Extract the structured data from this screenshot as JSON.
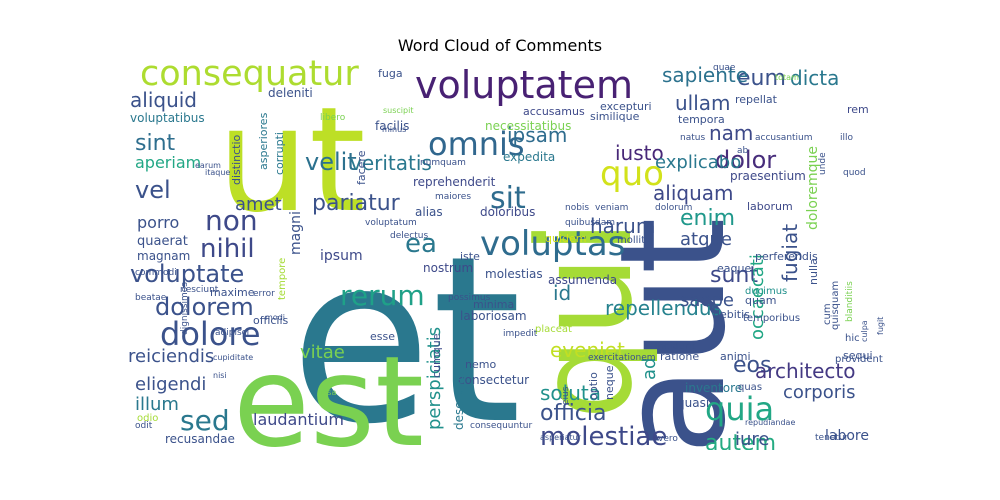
{
  "chart_data": {
    "type": "wordcloud",
    "title": "Word Cloud of Comments",
    "background": "#ffffff",
    "colormap": "viridis",
    "words": [
      {
        "text": "et",
        "color": "#2a788e"
      },
      {
        "text": "aut",
        "color": "#3b528b"
      },
      {
        "text": "ut",
        "color": "#bddf26"
      },
      {
        "text": "est",
        "color": "#7ad151"
      },
      {
        "text": "qui",
        "color": "#a5db36"
      },
      {
        "text": "voluptatem",
        "color": "#482173"
      },
      {
        "text": "consequatur",
        "color": "#addc30"
      },
      {
        "text": "voluptas",
        "color": "#2f6c8e"
      },
      {
        "text": "omnis",
        "color": "#31678e"
      },
      {
        "text": "quia",
        "color": "#22a785"
      },
      {
        "text": "dolore",
        "color": "#3b528b"
      },
      {
        "text": "non",
        "color": "#3e4989"
      },
      {
        "text": "quo",
        "color": "#d2e21b"
      },
      {
        "text": "sit",
        "color": "#2f6c8e"
      },
      {
        "text": "rerum",
        "color": "#1fa188"
      },
      {
        "text": "voluptate",
        "color": "#3b528b"
      },
      {
        "text": "dolorem",
        "color": "#3b528b"
      },
      {
        "text": "sed",
        "color": "#2a788e"
      },
      {
        "text": "molestiae",
        "color": "#3e4989"
      },
      {
        "text": "velit",
        "color": "#2c718e"
      },
      {
        "text": "ea",
        "color": "#2a788e"
      },
      {
        "text": "nihil",
        "color": "#3e4989"
      },
      {
        "text": "sint",
        "color": "#2e6e8e"
      },
      {
        "text": "vel",
        "color": "#3b528b"
      },
      {
        "text": "eum",
        "color": "#3b528b"
      },
      {
        "text": "dolor",
        "color": "#472d7b"
      },
      {
        "text": "autem",
        "color": "#25ab82"
      },
      {
        "text": "enim",
        "color": "#1f988b"
      },
      {
        "text": "sunt",
        "color": "#3e4989"
      },
      {
        "text": "aliquid",
        "color": "#3b528b"
      },
      {
        "text": "veritatis",
        "color": "#2a788e"
      },
      {
        "text": "pariatur",
        "color": "#3b528b"
      },
      {
        "text": "sapiente",
        "color": "#2c728e"
      },
      {
        "text": "dicta",
        "color": "#2a788e"
      },
      {
        "text": "ipsam",
        "color": "#2f6c8e"
      },
      {
        "text": "repellendus",
        "color": "#26828e"
      },
      {
        "text": "eos",
        "color": "#3b528b"
      },
      {
        "text": "architecto",
        "color": "#443983"
      },
      {
        "text": "ullam",
        "color": "#3b528b"
      },
      {
        "text": "nam",
        "color": "#3e4989"
      },
      {
        "text": "iusto",
        "color": "#482878"
      },
      {
        "text": "explicabo",
        "color": "#2a788e"
      },
      {
        "text": "aliquam",
        "color": "#3e4989"
      },
      {
        "text": "harum",
        "color": "#3b528b"
      },
      {
        "text": "atque",
        "color": "#3b528b"
      },
      {
        "text": "fugiat",
        "color": "#3b528b"
      },
      {
        "text": "occaecati",
        "color": "#22a785"
      },
      {
        "text": "doloremque",
        "color": "#7ad151"
      },
      {
        "text": "officia",
        "color": "#3b528b"
      },
      {
        "text": "soluta",
        "color": "#21918c"
      },
      {
        "text": "perspiciatis",
        "color": "#21918c"
      },
      {
        "text": "eveniet",
        "color": "#c2df23"
      },
      {
        "text": "id",
        "color": "#2a788e"
      },
      {
        "text": "ad",
        "color": "#21918c"
      },
      {
        "text": "saepe",
        "color": "#3b528b"
      },
      {
        "text": "corporis",
        "color": "#3b528b"
      },
      {
        "text": "iure",
        "color": "#3b528b"
      },
      {
        "text": "labore",
        "color": "#3b528b"
      },
      {
        "text": "reiciendis",
        "color": "#3b528b"
      },
      {
        "text": "eligendi",
        "color": "#3b528b"
      },
      {
        "text": "illum",
        "color": "#2a788e"
      },
      {
        "text": "laudantium",
        "color": "#3e4989"
      },
      {
        "text": "vitae",
        "color": "#7ad151"
      },
      {
        "text": "porro",
        "color": "#3b528b"
      },
      {
        "text": "amet",
        "color": "#3b528b"
      },
      {
        "text": "aperiam",
        "color": "#22a785"
      },
      {
        "text": "magni",
        "color": "#3b528b"
      },
      {
        "text": "ipsum",
        "color": "#3e4989"
      },
      {
        "text": "quaerat",
        "color": "#3b528b"
      },
      {
        "text": "magnam",
        "color": "#3b528b"
      },
      {
        "text": "recusandae",
        "color": "#3b528b"
      },
      {
        "text": "maxime",
        "color": "#3b528b"
      },
      {
        "text": "officiis",
        "color": "#3b528b"
      },
      {
        "text": "odio",
        "color": "#a5db36"
      },
      {
        "text": "inventore",
        "color": "#2a788e"
      },
      {
        "text": "quasi",
        "color": "#3b528b"
      },
      {
        "text": "consectetur",
        "color": "#3b528b"
      },
      {
        "text": "doloribus",
        "color": "#3e4989"
      },
      {
        "text": "deserunt",
        "color": "#2a788e"
      },
      {
        "text": "cumque",
        "color": "#3e4989"
      },
      {
        "text": "esse",
        "color": "#3b528b"
      },
      {
        "text": "laboriosam",
        "color": "#3b528b"
      },
      {
        "text": "minima",
        "color": "#3b528b"
      },
      {
        "text": "molestias",
        "color": "#3b528b"
      },
      {
        "text": "assumenda",
        "color": "#3e4989"
      },
      {
        "text": "nostrum",
        "color": "#3e4989"
      },
      {
        "text": "iste",
        "color": "#3b528b"
      },
      {
        "text": "alias",
        "color": "#3b528b"
      },
      {
        "text": "quidem",
        "color": "#d2e21b"
      },
      {
        "text": "expedita",
        "color": "#2a788e"
      },
      {
        "text": "reprehenderit",
        "color": "#3e4989"
      },
      {
        "text": "necessitatibus",
        "color": "#7ad151"
      },
      {
        "text": "facilis",
        "color": "#3b528b"
      },
      {
        "text": "similique",
        "color": "#3b528b"
      },
      {
        "text": "voluptatibus",
        "color": "#2a788e"
      },
      {
        "text": "deleniti",
        "color": "#3b528b"
      },
      {
        "text": "asperiores",
        "color": "#2a788e"
      },
      {
        "text": "corrupti",
        "color": "#2a788e"
      },
      {
        "text": "distinctio",
        "color": "#3b528b"
      },
      {
        "text": "facere",
        "color": "#3b528b"
      },
      {
        "text": "fuga",
        "color": "#3b528b"
      },
      {
        "text": "accusamus",
        "color": "#3e4989"
      },
      {
        "text": "excepturi",
        "color": "#3b528b"
      },
      {
        "text": "tempora",
        "color": "#3b528b"
      },
      {
        "text": "repellat",
        "color": "#3b528b"
      },
      {
        "text": "rem",
        "color": "#3e4989"
      },
      {
        "text": "praesentium",
        "color": "#3e4989"
      },
      {
        "text": "laborum",
        "color": "#3e4989"
      },
      {
        "text": "perferendis",
        "color": "#3b528b"
      },
      {
        "text": "eaque",
        "color": "#3b528b"
      },
      {
        "text": "nulla",
        "color": "#3b528b"
      },
      {
        "text": "cum",
        "color": "#3b528b"
      },
      {
        "text": "quam",
        "color": "#3b528b"
      },
      {
        "text": "ducimus",
        "color": "#21918c"
      },
      {
        "text": "debitis",
        "color": "#3b528b"
      },
      {
        "text": "temporibus",
        "color": "#3b528b"
      },
      {
        "text": "quisquam",
        "color": "#3b528b"
      },
      {
        "text": "blanditiis",
        "color": "#7ad151"
      },
      {
        "text": "hic",
        "color": "#3b528b"
      },
      {
        "text": "sequi",
        "color": "#3b528b"
      },
      {
        "text": "provident",
        "color": "#3b528b"
      },
      {
        "text": "animi",
        "color": "#3b528b"
      },
      {
        "text": "ratione",
        "color": "#3b528b"
      },
      {
        "text": "incidunt",
        "color": "#3b528b"
      },
      {
        "text": "quas",
        "color": "#3b528b"
      },
      {
        "text": "tenetur",
        "color": "#3b528b"
      },
      {
        "text": "repudiandae",
        "color": "#3b528b"
      },
      {
        "text": "vero",
        "color": "#3b528b"
      },
      {
        "text": "consequuntur",
        "color": "#3b528b"
      },
      {
        "text": "asperiatur",
        "color": "#3b528b"
      },
      {
        "text": "eius",
        "color": "#3b528b"
      },
      {
        "text": "optio",
        "color": "#3b528b"
      },
      {
        "text": "neque",
        "color": "#3b528b"
      },
      {
        "text": "exercitationem",
        "color": "#3b528b"
      },
      {
        "text": "placeat",
        "color": "#a5db36"
      },
      {
        "text": "impedit",
        "color": "#3b528b"
      },
      {
        "text": "possimus",
        "color": "#3b528b"
      },
      {
        "text": "nemo",
        "color": "#3b528b"
      },
      {
        "text": "nobis",
        "color": "#3b528b"
      },
      {
        "text": "veniam",
        "color": "#3b528b"
      },
      {
        "text": "dolorum",
        "color": "#3b528b"
      },
      {
        "text": "mollitia",
        "color": "#3b528b"
      },
      {
        "text": "delectus",
        "color": "#3b528b"
      },
      {
        "text": "quibusdam",
        "color": "#3b528b"
      },
      {
        "text": "voluptatum",
        "color": "#3b528b"
      },
      {
        "text": "maiores",
        "color": "#3b528b"
      },
      {
        "text": "numquam",
        "color": "#3b528b"
      },
      {
        "text": "libero",
        "color": "#7ad151"
      },
      {
        "text": "suscipit",
        "color": "#7ad151"
      },
      {
        "text": "minus",
        "color": "#3b528b"
      },
      {
        "text": "natus",
        "color": "#3b528b"
      },
      {
        "text": "accusantium",
        "color": "#3b528b"
      },
      {
        "text": "illo",
        "color": "#3b528b"
      },
      {
        "text": "unde",
        "color": "#3b528b"
      },
      {
        "text": "quod",
        "color": "#3b528b"
      },
      {
        "text": "totam",
        "color": "#7ad151"
      },
      {
        "text": "quae",
        "color": "#3b528b"
      },
      {
        "text": "ab",
        "color": "#3b528b"
      },
      {
        "text": "itaque",
        "color": "#3b528b"
      },
      {
        "text": "earum",
        "color": "#3b528b"
      },
      {
        "text": "commodi",
        "color": "#3b528b"
      },
      {
        "text": "beatae",
        "color": "#3b528b"
      },
      {
        "text": "nesciunt",
        "color": "#3b528b"
      },
      {
        "text": "tempore",
        "color": "#a5db36"
      },
      {
        "text": "error",
        "color": "#3b528b"
      },
      {
        "text": "modi",
        "color": "#3b528b"
      },
      {
        "text": "adipisci",
        "color": "#3b528b"
      },
      {
        "text": "cupiditate",
        "color": "#3b528b"
      },
      {
        "text": "nisi",
        "color": "#3b528b"
      },
      {
        "text": "dignissimos",
        "color": "#3b528b"
      },
      {
        "text": "ipsa",
        "color": "#7ad151"
      },
      {
        "text": "odit",
        "color": "#3b528b"
      },
      {
        "text": "fugit",
        "color": "#3b528b"
      },
      {
        "text": "culpa",
        "color": "#3b528b"
      }
    ]
  }
}
